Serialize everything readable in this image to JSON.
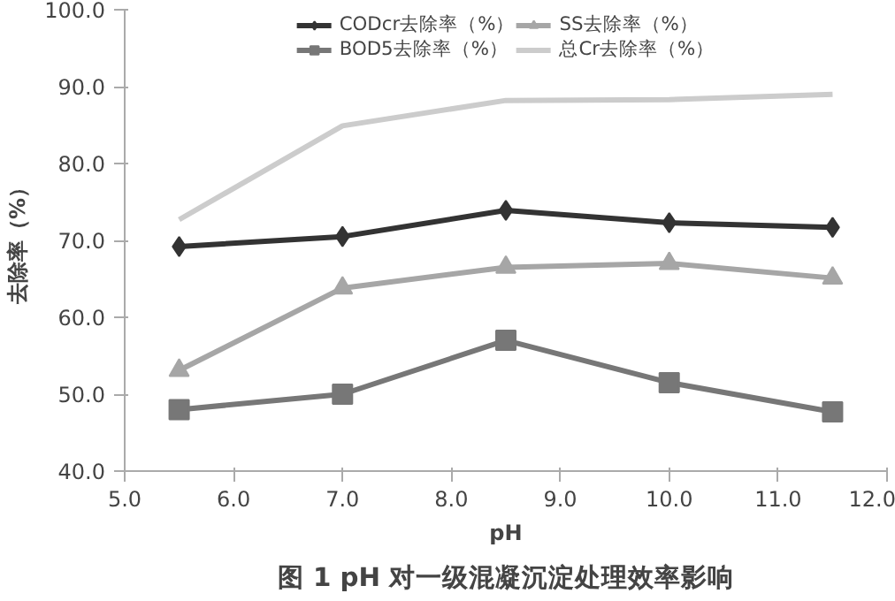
{
  "chart_data": {
    "type": "line",
    "title": "图 1 pH 对一级混凝沉淀处理效率影响",
    "xlabel": "pH",
    "ylabel": "去除率（%）",
    "x": [
      5.5,
      7.0,
      8.5,
      10.0,
      11.5
    ],
    "series": [
      {
        "name": "CODcr去除率（%）",
        "color": "#333333",
        "marker": "diamond",
        "values": [
          69.2,
          70.5,
          73.9,
          72.3,
          71.7
        ]
      },
      {
        "name": "BOD5去除率（%）",
        "color": "#777777",
        "marker": "square",
        "values": [
          48.0,
          50.0,
          57.0,
          51.5,
          47.7
        ]
      },
      {
        "name": "SS去除率（%）",
        "color": "#a6a6a6",
        "marker": "triangle",
        "values": [
          53.1,
          63.8,
          66.5,
          67.0,
          65.1
        ]
      },
      {
        "name": "总Cr去除率（%）",
        "color": "#cccccc",
        "marker": "none",
        "values": [
          72.7,
          84.9,
          88.2,
          88.3,
          89.0
        ]
      }
    ],
    "xlim": [
      5.0,
      12.0
    ],
    "xticks": [
      {
        "value": 5,
        "label": "5.0"
      },
      {
        "value": 6,
        "label": "6.0"
      },
      {
        "value": 7,
        "label": "7.0"
      },
      {
        "value": 8,
        "label": "8.0"
      },
      {
        "value": 9,
        "label": "9.0"
      },
      {
        "value": 10,
        "label": "10.0"
      },
      {
        "value": 11,
        "label": "11.0"
      },
      {
        "value": 12,
        "label": "12.0"
      }
    ],
    "ylim": [
      40.0,
      100.0
    ],
    "yticks": [
      {
        "value": 40,
        "label": "40.0"
      },
      {
        "value": 50,
        "label": "50.0"
      },
      {
        "value": 60,
        "label": "60.0"
      },
      {
        "value": 70,
        "label": "70.0"
      },
      {
        "value": 80,
        "label": "80.0"
      },
      {
        "value": 90,
        "label": "90.0"
      },
      {
        "value": 100,
        "label": "100.0"
      }
    ],
    "grid": false,
    "legend": "top",
    "line_style": "solid"
  }
}
